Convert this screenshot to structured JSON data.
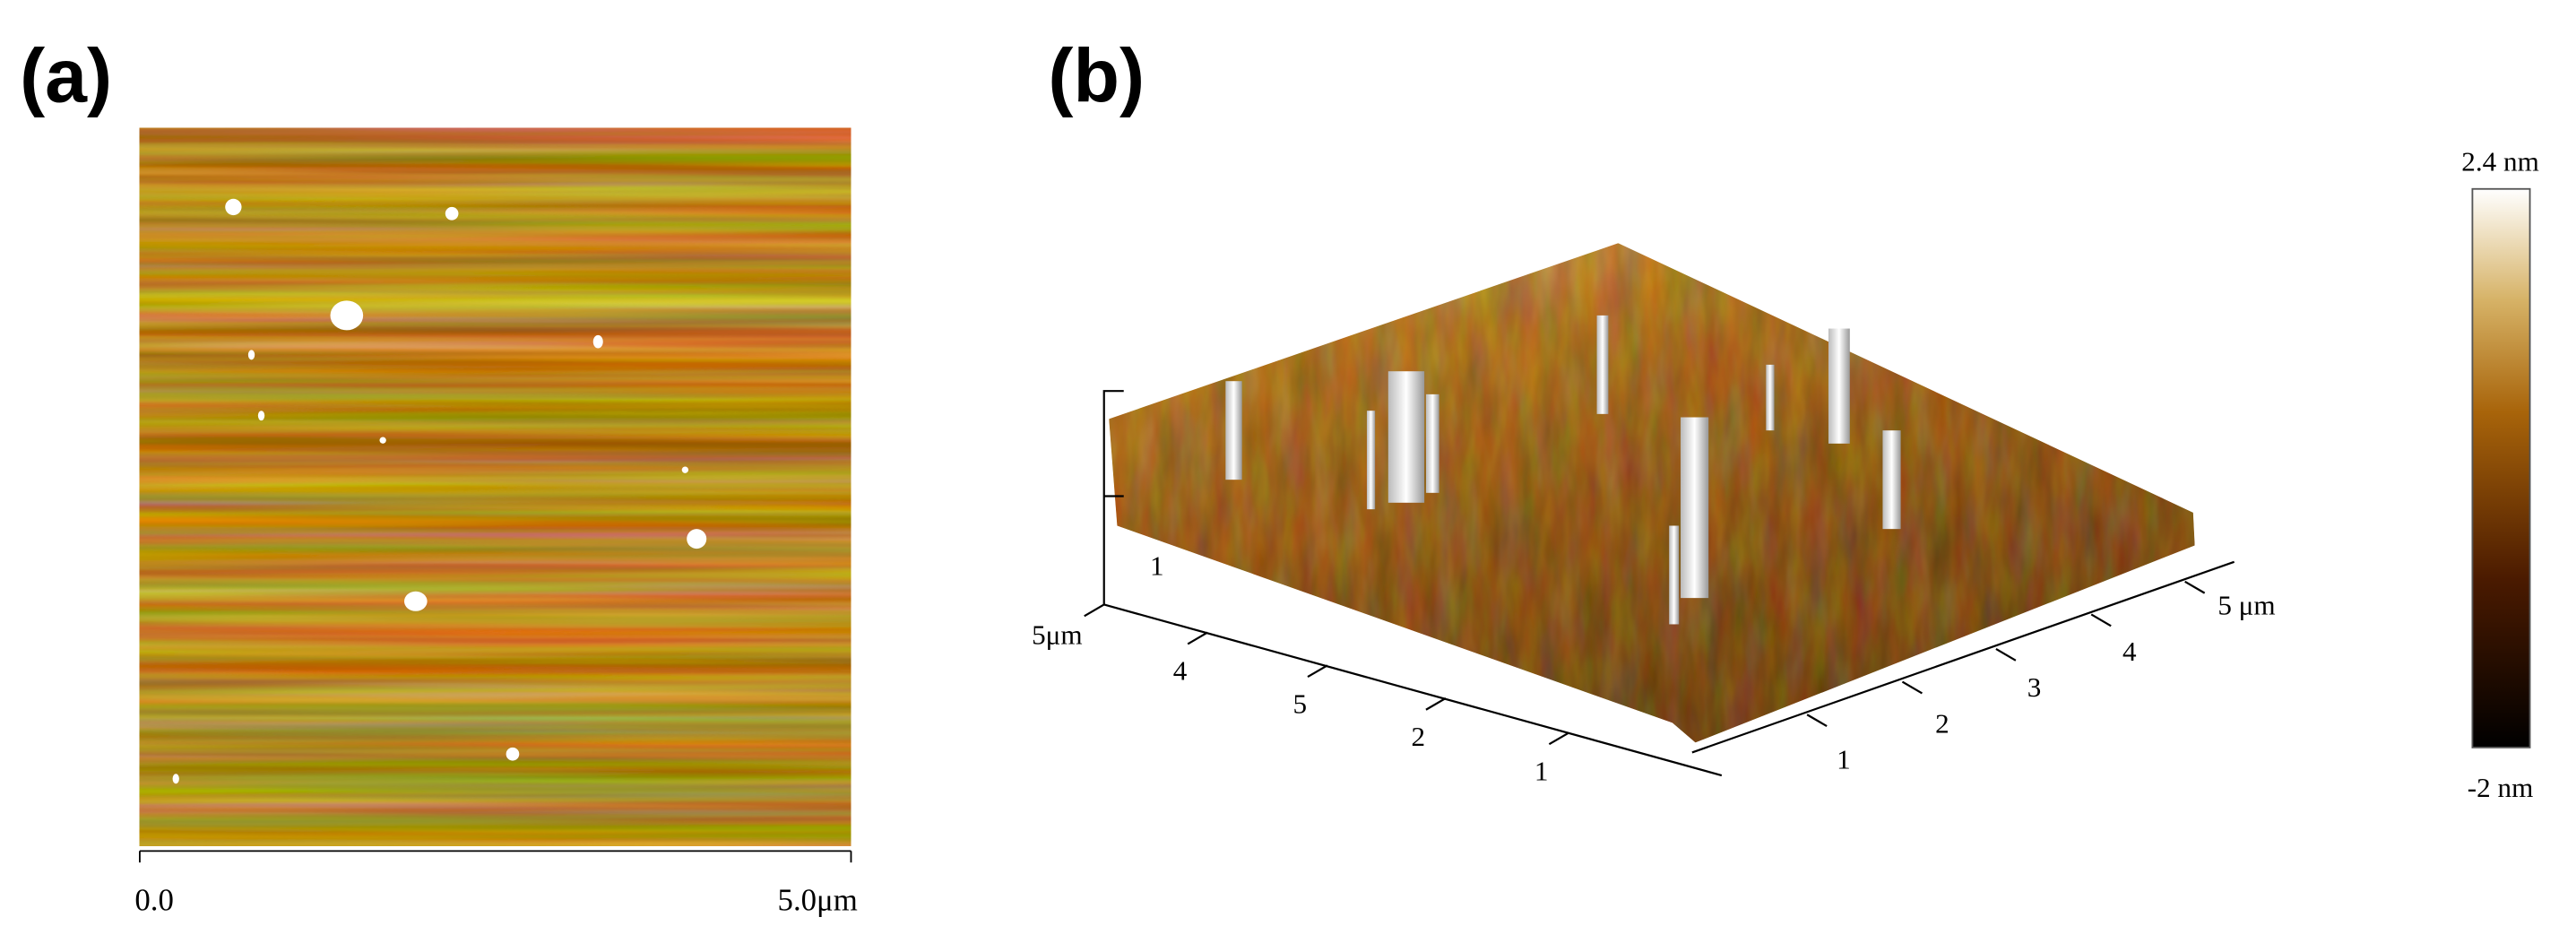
{
  "panels": [
    {
      "label": "(a)",
      "scale_bar": {
        "start": "0.0",
        "end": "5.0μm"
      }
    },
    {
      "label": "(b)",
      "z_axis": [
        "1"
      ],
      "x_axis": [
        "5μm",
        "4",
        "5",
        "2",
        "1"
      ],
      "y_axis": [
        "1",
        "2",
        "3",
        "4",
        "5 μm"
      ],
      "colorbar": {
        "max": "2.4 nm",
        "min": "-2 nm"
      }
    }
  ]
}
